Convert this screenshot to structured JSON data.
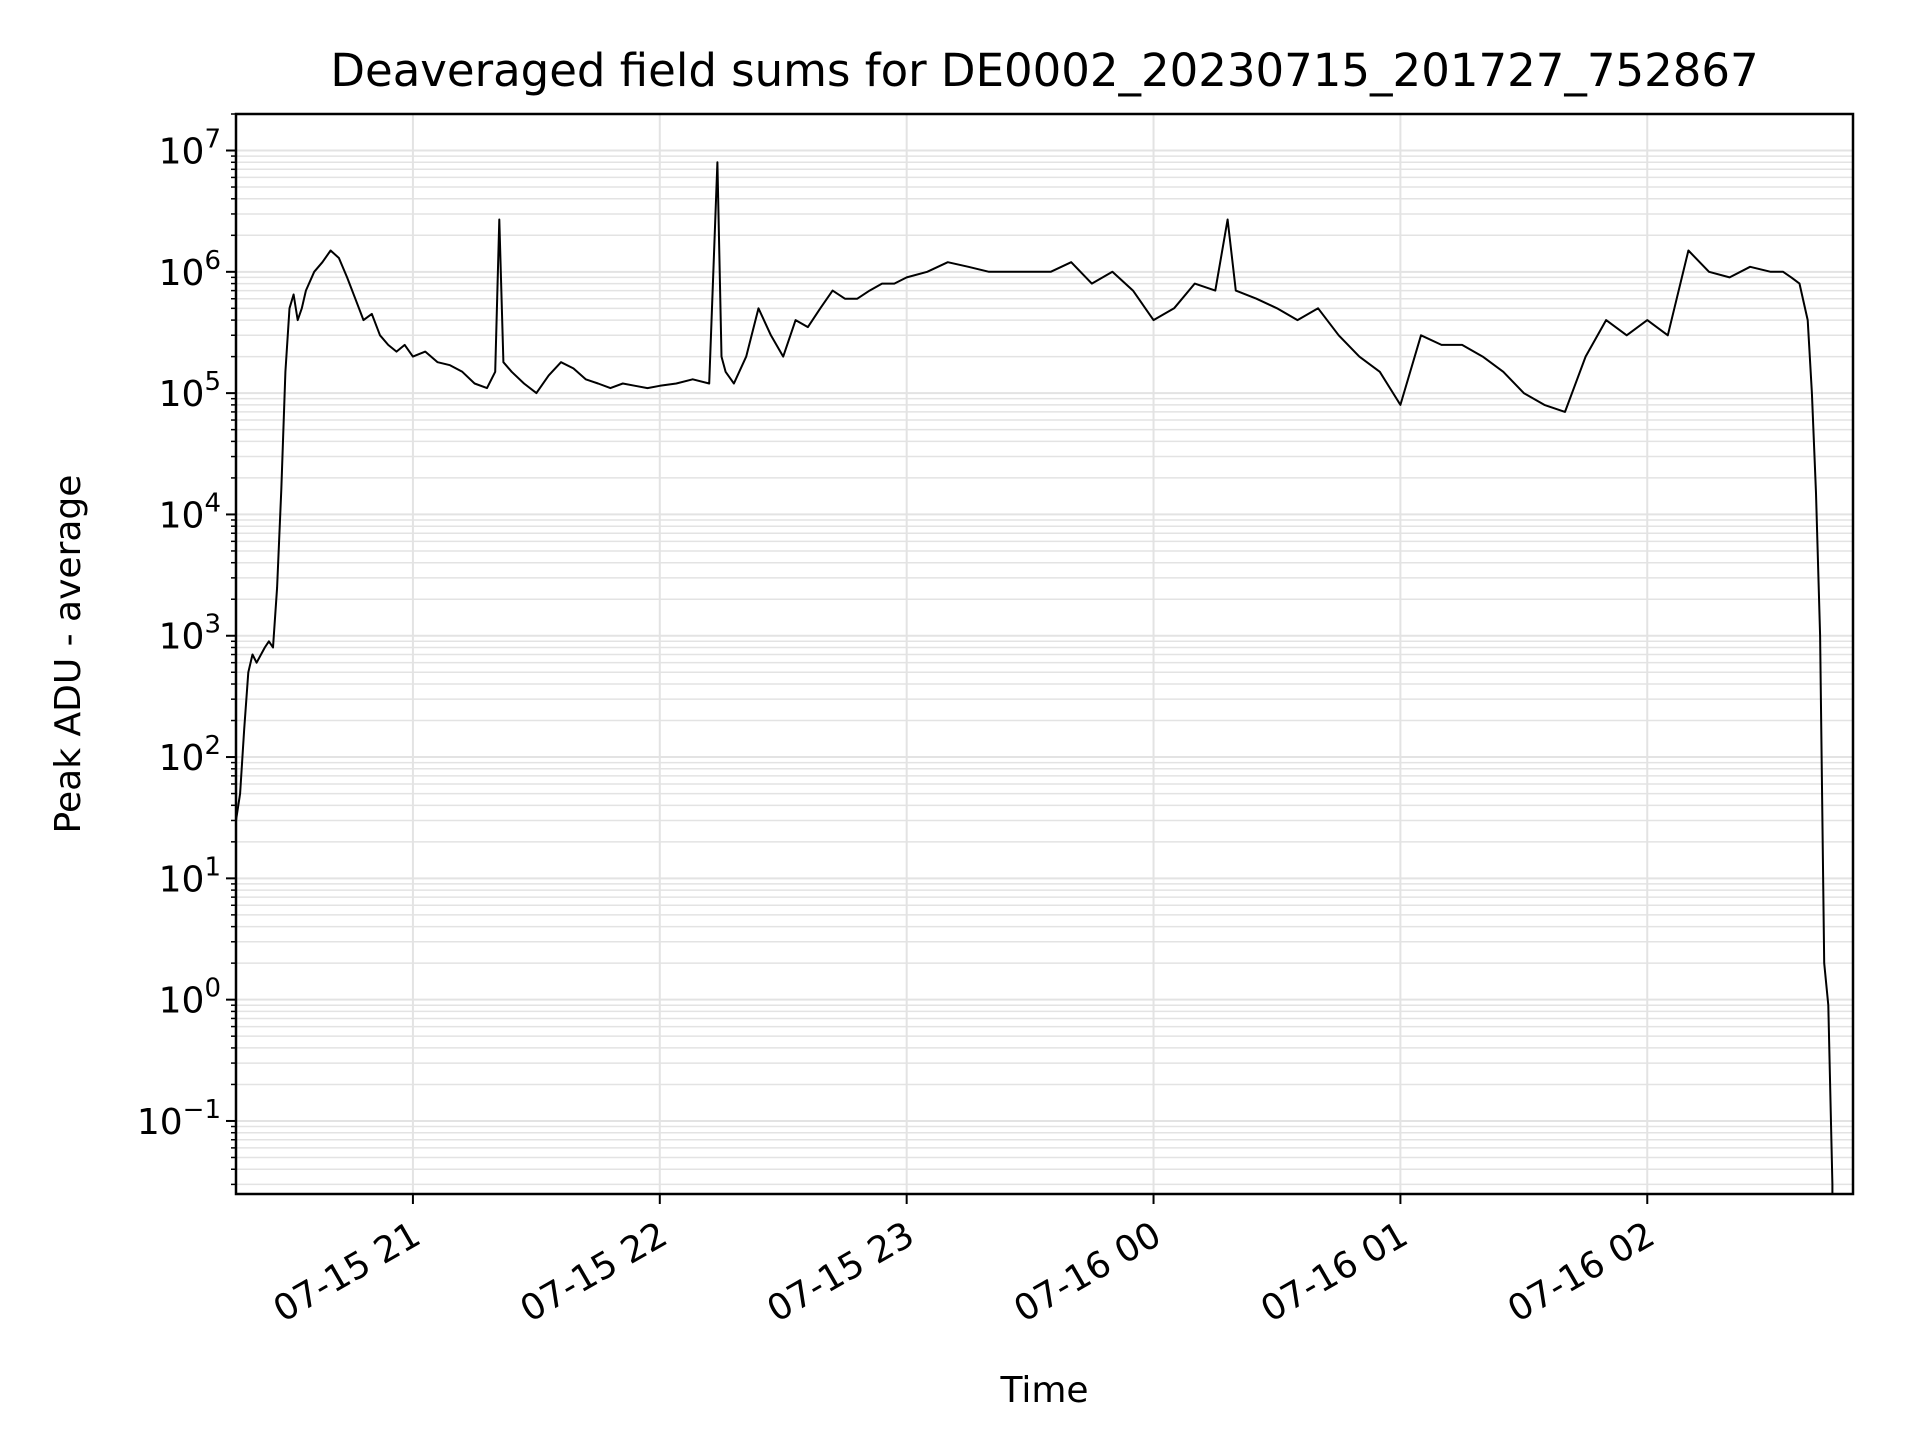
{
  "chart_data": {
    "type": "line",
    "title": "Deaveraged field sums for DE0002_20230715_201727_752867",
    "xlabel": "Time",
    "ylabel": "Peak ADU - average",
    "yscale": "log",
    "ylim": [
      0.025,
      20000000
    ],
    "xlim": [
      "2023-07-15 20:17",
      "2023-07-16 02:50"
    ],
    "grid": {
      "major": true,
      "minor_y": true
    },
    "line_color": "#000000",
    "x_ticks": [
      {
        "t": "2023-07-15 21:00",
        "label": "07-15 21"
      },
      {
        "t": "2023-07-15 22:00",
        "label": "07-15 22"
      },
      {
        "t": "2023-07-15 23:00",
        "label": "07-15 23"
      },
      {
        "t": "2023-07-16 00:00",
        "label": "07-16 00"
      },
      {
        "t": "2023-07-16 01:00",
        "label": "07-16 01"
      },
      {
        "t": "2023-07-16 02:00",
        "label": "07-16 02"
      }
    ],
    "y_ticks": [
      {
        "value": 0.1,
        "base": "10",
        "exp": "−1"
      },
      {
        "value": 1,
        "base": "10",
        "exp": "0"
      },
      {
        "value": 10,
        "base": "10",
        "exp": "1"
      },
      {
        "value": 100,
        "base": "10",
        "exp": "2"
      },
      {
        "value": 1000,
        "base": "10",
        "exp": "3"
      },
      {
        "value": 10000,
        "base": "10",
        "exp": "4"
      },
      {
        "value": 100000,
        "base": "10",
        "exp": "5"
      },
      {
        "value": 1000000,
        "base": "10",
        "exp": "6"
      },
      {
        "value": 10000000,
        "base": "10",
        "exp": "7"
      }
    ],
    "series": [
      {
        "x": [
          "2023-07-15 20:17",
          "2023-07-15 20:18",
          "2023-07-15 20:19",
          "2023-07-15 20:20",
          "2023-07-15 20:21",
          "2023-07-15 20:22",
          "2023-07-15 20:24",
          "2023-07-15 20:25",
          "2023-07-15 20:26",
          "2023-07-15 20:27",
          "2023-07-15 20:28",
          "2023-07-15 20:29",
          "2023-07-15 20:30",
          "2023-07-15 20:31",
          "2023-07-15 20:32",
          "2023-07-15 20:33",
          "2023-07-15 20:34",
          "2023-07-15 20:36",
          "2023-07-15 20:38",
          "2023-07-15 20:40",
          "2023-07-15 20:42",
          "2023-07-15 20:44",
          "2023-07-15 20:46",
          "2023-07-15 20:48",
          "2023-07-15 20:50",
          "2023-07-15 20:52",
          "2023-07-15 20:54",
          "2023-07-15 20:56",
          "2023-07-15 20:58",
          "2023-07-15 21:00",
          "2023-07-15 21:03",
          "2023-07-15 21:06",
          "2023-07-15 21:09",
          "2023-07-15 21:12",
          "2023-07-15 21:15",
          "2023-07-15 21:18",
          "2023-07-15 21:20",
          "2023-07-15 21:21",
          "2023-07-15 21:22",
          "2023-07-15 21:24",
          "2023-07-15 21:27",
          "2023-07-15 21:30",
          "2023-07-15 21:33",
          "2023-07-15 21:36",
          "2023-07-15 21:39",
          "2023-07-15 21:42",
          "2023-07-15 21:45",
          "2023-07-15 21:48",
          "2023-07-15 21:51",
          "2023-07-15 21:54",
          "2023-07-15 21:57",
          "2023-07-15 22:00",
          "2023-07-15 22:04",
          "2023-07-15 22:08",
          "2023-07-15 22:12",
          "2023-07-15 22:14",
          "2023-07-15 22:15",
          "2023-07-15 22:16",
          "2023-07-15 22:18",
          "2023-07-15 22:21",
          "2023-07-15 22:24",
          "2023-07-15 22:27",
          "2023-07-15 22:30",
          "2023-07-15 22:33",
          "2023-07-15 22:36",
          "2023-07-15 22:39",
          "2023-07-15 22:42",
          "2023-07-15 22:45",
          "2023-07-15 22:48",
          "2023-07-15 22:51",
          "2023-07-15 22:54",
          "2023-07-15 22:57",
          "2023-07-15 23:00",
          "2023-07-15 23:05",
          "2023-07-15 23:10",
          "2023-07-15 23:15",
          "2023-07-15 23:20",
          "2023-07-15 23:25",
          "2023-07-15 23:30",
          "2023-07-15 23:35",
          "2023-07-15 23:40",
          "2023-07-15 23:45",
          "2023-07-15 23:50",
          "2023-07-15 23:55",
          "2023-07-16 00:00",
          "2023-07-16 00:05",
          "2023-07-16 00:10",
          "2023-07-16 00:15",
          "2023-07-16 00:18",
          "2023-07-16 00:20",
          "2023-07-16 00:25",
          "2023-07-16 00:30",
          "2023-07-16 00:35",
          "2023-07-16 00:40",
          "2023-07-16 00:45",
          "2023-07-16 00:50",
          "2023-07-16 00:55",
          "2023-07-16 01:00",
          "2023-07-16 01:05",
          "2023-07-16 01:10",
          "2023-07-16 01:15",
          "2023-07-16 01:20",
          "2023-07-16 01:25",
          "2023-07-16 01:30",
          "2023-07-16 01:35",
          "2023-07-16 01:40",
          "2023-07-16 01:45",
          "2023-07-16 01:50",
          "2023-07-16 01:55",
          "2023-07-16 02:00",
          "2023-07-16 02:05",
          "2023-07-16 02:10",
          "2023-07-16 02:15",
          "2023-07-16 02:20",
          "2023-07-16 02:25",
          "2023-07-16 02:30",
          "2023-07-16 02:33",
          "2023-07-16 02:35",
          "2023-07-16 02:37",
          "2023-07-16 02:39",
          "2023-07-16 02:40",
          "2023-07-16 02:41",
          "2023-07-16 02:42",
          "2023-07-16 02:43",
          "2023-07-16 02:44",
          "2023-07-16 02:45"
        ],
        "y": [
          30,
          50,
          170,
          500,
          700,
          600,
          800,
          900,
          800,
          2500,
          16000,
          150000,
          500000,
          650000,
          400000,
          500000,
          700000,
          1000000,
          1200000,
          1500000,
          1300000,
          900000,
          600000,
          400000,
          450000,
          300000,
          250000,
          220000,
          250000,
          200000,
          220000,
          180000,
          170000,
          150000,
          120000,
          110000,
          150000,
          2700000,
          180000,
          150000,
          120000,
          100000,
          140000,
          180000,
          160000,
          130000,
          120000,
          110000,
          120000,
          115000,
          110000,
          115000,
          120000,
          130000,
          120000,
          8000000,
          200000,
          150000,
          120000,
          200000,
          500000,
          300000,
          200000,
          400000,
          350000,
          500000,
          700000,
          600000,
          600000,
          700000,
          800000,
          800000,
          900000,
          1000000,
          1200000,
          1100000,
          1000000,
          1000000,
          1000000,
          1000000,
          1200000,
          800000,
          1000000,
          700000,
          400000,
          500000,
          800000,
          700000,
          2700000,
          700000,
          600000,
          500000,
          400000,
          500000,
          300000,
          200000,
          150000,
          80000,
          300000,
          250000,
          250000,
          200000,
          150000,
          100000,
          80000,
          70000,
          200000,
          400000,
          300000,
          400000,
          300000,
          1500000,
          1000000,
          900000,
          1100000,
          1000000,
          1000000,
          900000,
          800000,
          400000,
          100000,
          15000,
          1000,
          2,
          0.9,
          0.03
        ]
      }
    ]
  }
}
